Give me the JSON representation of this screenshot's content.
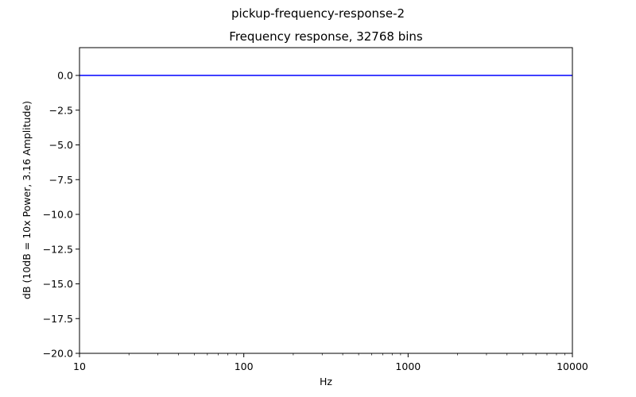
{
  "figure": {
    "suptitle": "pickup-frequency-response-2"
  },
  "chart_data": {
    "type": "line",
    "title": "Frequency response, 32768 bins",
    "xlabel": "Hz",
    "ylabel": "dB (10dB = 10x Power, 3.16 Amplitude)",
    "xscale": "log",
    "xlim": [
      10,
      10000
    ],
    "ylim": [
      -20,
      2
    ],
    "xticks": [
      10,
      100,
      1000,
      10000
    ],
    "xtick_labels": [
      "10",
      "100",
      "1000",
      "10000"
    ],
    "yticks": [
      0,
      -2.5,
      -5,
      -7.5,
      -10,
      -12.5,
      -15,
      -17.5,
      -20
    ],
    "ytick_labels": [
      "0.0",
      "−2.5",
      "−5.0",
      "−7.5",
      "−10.0",
      "−12.5",
      "−15.0",
      "−17.5",
      "−20.0"
    ],
    "grid": false,
    "legend": false,
    "series": [
      {
        "color": "#0000ff",
        "x": [
          10,
          10000
        ],
        "y": [
          0,
          0
        ]
      }
    ]
  }
}
